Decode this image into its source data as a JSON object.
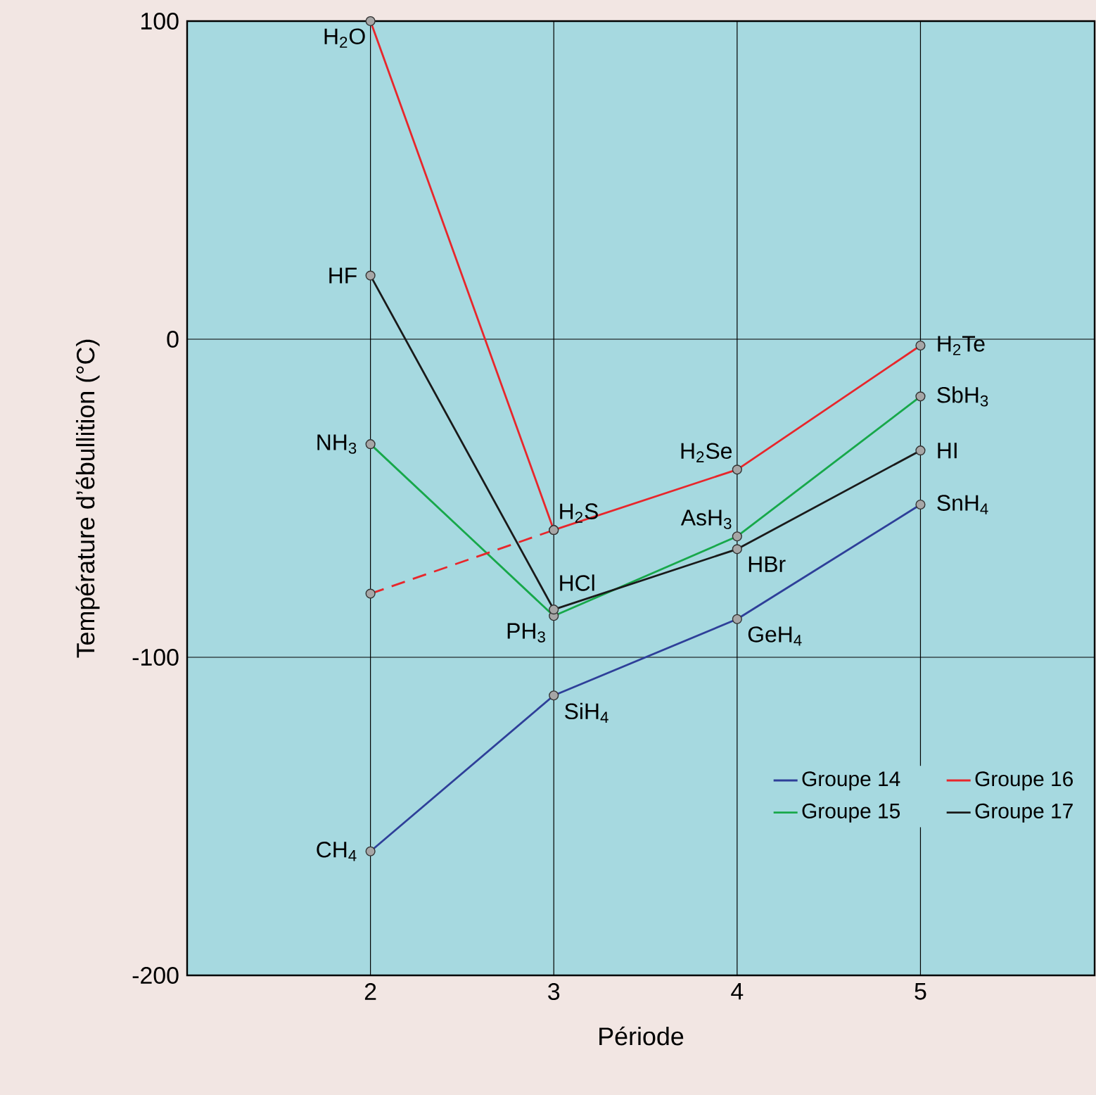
{
  "chart_data": {
    "type": "line",
    "xlabel": "Période",
    "ylabel": "Température d’ébullition (°C)",
    "x": [
      2,
      3,
      4,
      5
    ],
    "xlim": [
      1,
      5.95
    ],
    "ylim": [
      -200,
      100
    ],
    "xticks": [
      2,
      3,
      4,
      5
    ],
    "yticks": [
      -200,
      -100,
      0,
      100
    ],
    "grid": true,
    "legend": "bottom right",
    "marker": "circle",
    "line_style": "solid",
    "series": [
      {
        "name": "Groupe 14",
        "color": "#2e3f99",
        "values": [
          -161,
          -112,
          -88,
          -52
        ]
      },
      {
        "name": "Groupe 15",
        "color": "#17a84a",
        "values": [
          -33,
          -87,
          -62,
          -18
        ]
      },
      {
        "name": "Groupe 16",
        "color": "#e8262b",
        "values": [
          100,
          -60,
          -41,
          -2
        ]
      },
      {
        "name": "Groupe 17",
        "color": "#1a1a1a",
        "values": [
          20,
          -85,
          -66,
          -35
        ]
      },
      {
        "color": "#e8262b",
        "x": [
          2,
          3
        ],
        "values": [
          -80,
          -60
        ],
        "line_style": "dashed"
      }
    ],
    "annotations": [
      {
        "text": "CH$_{4}$",
        "x": 2,
        "y": -161
      },
      {
        "text": "SiH$_{4}$",
        "x": 3,
        "y": -112
      },
      {
        "text": "GeH$_{4}$",
        "x": 4,
        "y": -88
      },
      {
        "text": "SnH$_{4}$",
        "x": 5,
        "y": -52
      },
      {
        "text": "NH$_{3}$",
        "x": 2,
        "y": -33
      },
      {
        "text": "PH$_{3}$",
        "x": 3,
        "y": -87
      },
      {
        "text": "AsH$_{3}$",
        "x": 4,
        "y": -62
      },
      {
        "text": "SbH$_{3}$",
        "x": 5,
        "y": -18
      },
      {
        "text": "H$_{2}$O",
        "x": 2,
        "y": 100
      },
      {
        "text": "H$_{2}$S",
        "x": 3,
        "y": -60
      },
      {
        "text": "H$_{2}$Se",
        "x": 4,
        "y": -41
      },
      {
        "text": "H$_{2}$Te",
        "x": 5,
        "y": -2
      },
      {
        "text": "HF",
        "x": 2,
        "y": 20
      },
      {
        "text": "HCl",
        "x": 3,
        "y": -85
      },
      {
        "text": "HBr",
        "x": 4,
        "y": -66
      },
      {
        "text": "HI",
        "x": 5,
        "y": -35
      }
    ]
  }
}
